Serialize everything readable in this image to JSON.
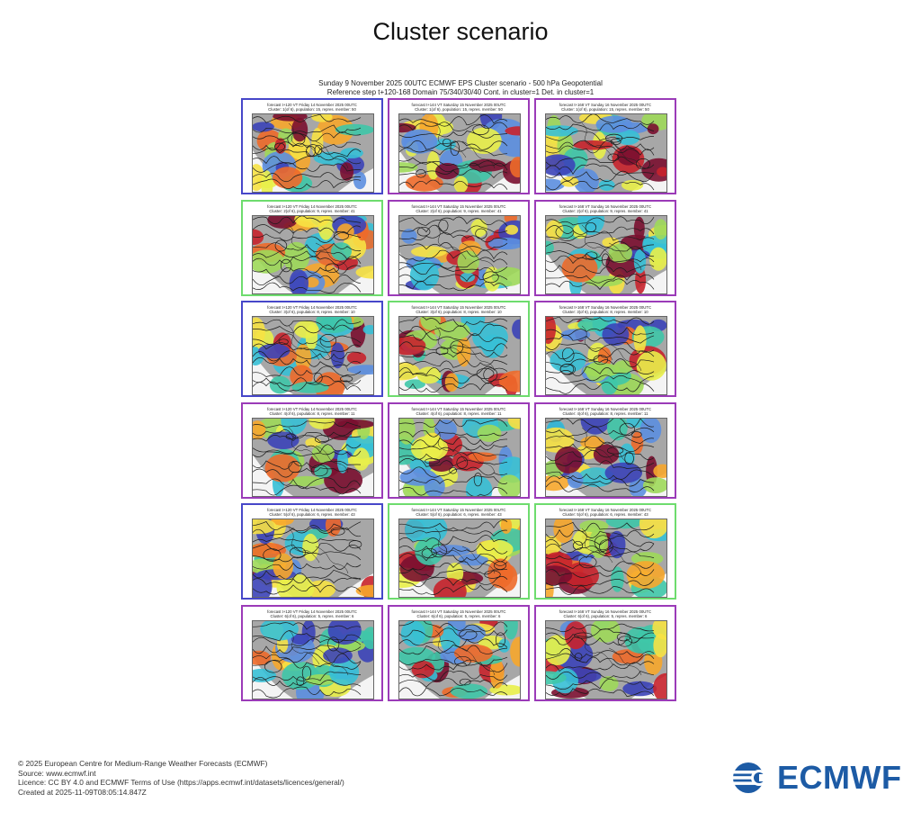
{
  "page": {
    "title": "Cluster scenario",
    "header_line1": "Sunday 9 November 2025 00UTC ECMWF EPS Cluster scenario - 500 hPa Geopotential",
    "header_line2": "Reference step t+120-168 Domain 75/340/30/40 Cont. in cluster=1 Det. in cluster=1"
  },
  "panels": [
    {
      "line1": "forecast t+120 VT Friday 14 November 2025 00UTC",
      "line2": "Cluster: 1(of 6), population: 15, repres. member: 50",
      "color": "#4747c9"
    },
    {
      "line1": "forecast t+144 VT Saturday 15 November 2025 00UTC",
      "line2": "Cluster: 1(of 6), population: 15, repres. member: 50",
      "color": "#9b3bb8"
    },
    {
      "line1": "forecast t+168 VT Sunday 16 November 2025 00UTC",
      "line2": "Cluster: 1(of 6), population: 15, repres. member: 50",
      "color": "#9b3bb8"
    },
    {
      "line1": "forecast t+120 VT Friday 14 November 2025 00UTC",
      "line2": "Cluster: 2(of 6), population: 9, repres. member: 41",
      "color": "#6edc6e"
    },
    {
      "line1": "forecast t+144 VT Saturday 15 November 2025 00UTC",
      "line2": "Cluster: 2(of 6), population: 9, repres. member: 41",
      "color": "#9b3bb8"
    },
    {
      "line1": "forecast t+168 VT Sunday 16 November 2025 00UTC",
      "line2": "Cluster: 2(of 6), population: 9, repres. member: 41",
      "color": "#9b3bb8"
    },
    {
      "line1": "forecast t+120 VT Friday 14 November 2025 00UTC",
      "line2": "Cluster: 3(of 6), population: 8, repres. member: 10",
      "color": "#4747c9"
    },
    {
      "line1": "forecast t+144 VT Saturday 15 November 2025 00UTC",
      "line2": "Cluster: 3(of 6), population: 8, repres. member: 10",
      "color": "#6edc6e"
    },
    {
      "line1": "forecast t+168 VT Sunday 16 November 2025 00UTC",
      "line2": "Cluster: 3(of 6), population: 8, repres. member: 10",
      "color": "#9b3bb8"
    },
    {
      "line1": "forecast t+120 VT Friday 14 November 2025 00UTC",
      "line2": "Cluster: 4(of 6), population: 8, repres. member: 11",
      "color": "#9b3bb8"
    },
    {
      "line1": "forecast t+144 VT Saturday 15 November 2025 00UTC",
      "line2": "Cluster: 4(of 6), population: 8, repres. member: 11",
      "color": "#9b3bb8"
    },
    {
      "line1": "forecast t+168 VT Sunday 16 November 2025 00UTC",
      "line2": "Cluster: 4(of 6), population: 8, repres. member: 11",
      "color": "#9b3bb8"
    },
    {
      "line1": "forecast t+120 VT Friday 14 November 2025 00UTC",
      "line2": "Cluster: 5(of 6), population: 6, repres. member: 43",
      "color": "#4747c9"
    },
    {
      "line1": "forecast t+144 VT Saturday 15 November 2025 00UTC",
      "line2": "Cluster: 5(of 6), population: 6, repres. member: 43",
      "color": "#6edc6e"
    },
    {
      "line1": "forecast t+168 VT Sunday 16 November 2025 00UTC",
      "line2": "Cluster: 5(of 6), population: 6, repres. member: 43",
      "color": "#6edc6e"
    },
    {
      "line1": "forecast t+120 VT Friday 14 November 2025 00UTC",
      "line2": "Cluster: 6(of 6), population: 5, repres. member: 6",
      "color": "#9b3bb8"
    },
    {
      "line1": "forecast t+144 VT Saturday 15 November 2025 00UTC",
      "line2": "Cluster: 6(of 6), population: 5, repres. member: 6",
      "color": "#9b3bb8"
    },
    {
      "line1": "forecast t+168 VT Sunday 16 November 2025 00UTC",
      "line2": "Cluster: 6(of 6), population: 5, repres. member: 6",
      "color": "#9b3bb8"
    }
  ],
  "footer": {
    "copyright": "© 2025 European Centre for Medium-Range Weather Forecasts (ECMWF)",
    "source": "Source: www.ecmwf.int",
    "licence": "Licence: CC BY 4.0 and ECMWF Terms of Use (https://apps.ecmwf.int/datasets/licences/general/)",
    "created": "Created at 2025-11-09T08:05:14.847Z"
  },
  "logo": {
    "text": "ECMWF",
    "color": "#1d5ba5"
  }
}
